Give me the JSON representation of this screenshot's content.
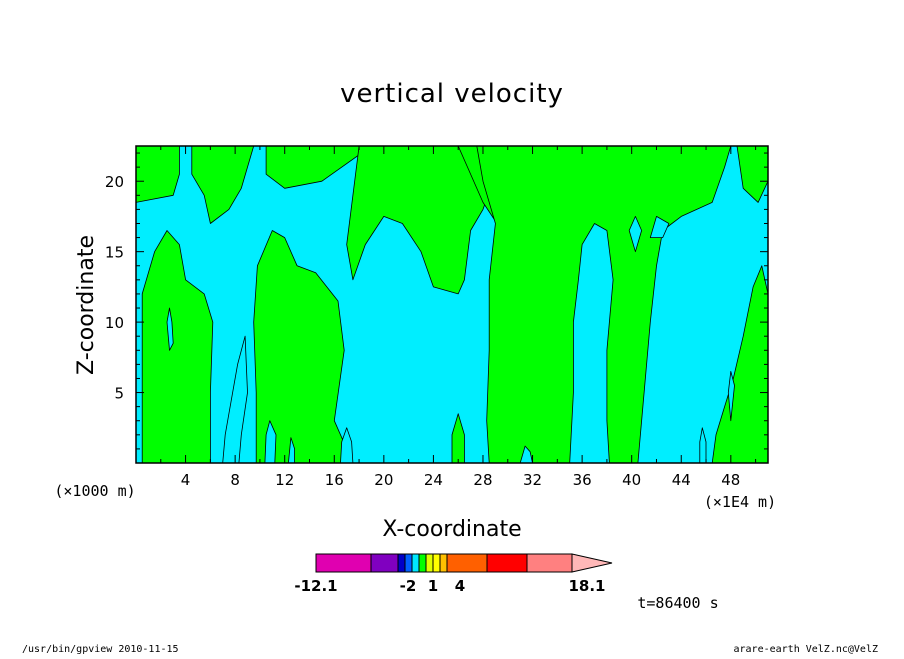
{
  "chart_data": {
    "type": "heatmap",
    "title": "vertical velocity",
    "xlabel": "X-coordinate",
    "ylabel": "Z-coordinate",
    "x_unit_label": "(×1E4 m)",
    "y_unit_label": "(×1000 m)",
    "x_ticks": [
      "4",
      "8",
      "12",
      "16",
      "20",
      "24",
      "28",
      "32",
      "36",
      "40",
      "44",
      "48"
    ],
    "y_ticks": [
      "5",
      "10",
      "15",
      "20"
    ],
    "xlim": [
      0,
      51
    ],
    "ylim": [
      0,
      22.5
    ],
    "colorbar": {
      "colors": [
        "#e000b0",
        "#8000c0",
        "#0000c8",
        "#0060ff",
        "#00e8ff",
        "#00ff00",
        "#e0ff00",
        "#ffff00",
        "#ffc000",
        "#ff6000",
        "#ff0000",
        "#ff8080",
        "#ffb8b8"
      ],
      "labels": [
        "-12.1",
        "-2",
        "1",
        "4",
        "18.1"
      ]
    },
    "field_colors": {
      "positive": "#00ff00",
      "negative": "#00eeff"
    },
    "regions": [
      {
        "sign": "positive",
        "polygon": [
          [
            0,
            22.5
          ],
          [
            3.5,
            22.5
          ],
          [
            3.5,
            20.5
          ],
          [
            3,
            19
          ],
          [
            0,
            18.5
          ]
        ]
      },
      {
        "sign": "positive",
        "polygon": [
          [
            4.5,
            22.5
          ],
          [
            9.5,
            22.5
          ],
          [
            8.5,
            19.5
          ],
          [
            7.5,
            18
          ],
          [
            6,
            17
          ],
          [
            5.5,
            19
          ],
          [
            4.5,
            20.5
          ]
        ]
      },
      {
        "sign": "positive",
        "polygon": [
          [
            10.5,
            22.5
          ],
          [
            19,
            22.5
          ],
          [
            15,
            20
          ],
          [
            12,
            19.5
          ],
          [
            10.5,
            20.5
          ]
        ]
      },
      {
        "sign": "positive",
        "polygon": [
          [
            0.5,
            0
          ],
          [
            6,
            0
          ],
          [
            6,
            5
          ],
          [
            6.2,
            10
          ],
          [
            5.5,
            12
          ],
          [
            4,
            13
          ],
          [
            3.5,
            15.5
          ],
          [
            2.5,
            16.5
          ],
          [
            1.5,
            15
          ],
          [
            0.5,
            12
          ],
          [
            0.5,
            6
          ]
        ]
      },
      {
        "sign": "positive",
        "polygon": [
          [
            9.7,
            0
          ],
          [
            17.5,
            0
          ],
          [
            16,
            3
          ],
          [
            16.8,
            8
          ],
          [
            16.3,
            11.5
          ],
          [
            14.5,
            13.5
          ],
          [
            13,
            14
          ],
          [
            12,
            16
          ],
          [
            11,
            16.5
          ],
          [
            9.8,
            14
          ],
          [
            9.5,
            10
          ],
          [
            9.7,
            5
          ]
        ]
      },
      {
        "sign": "positive",
        "polygon": [
          [
            18,
            22.5
          ],
          [
            26.5,
            22.5
          ],
          [
            29,
            20.5
          ],
          [
            28,
            18
          ],
          [
            27,
            16.5
          ],
          [
            26.5,
            13
          ],
          [
            26,
            12
          ],
          [
            24,
            12.5
          ],
          [
            23,
            15
          ],
          [
            21.5,
            17
          ],
          [
            20,
            17.5
          ],
          [
            18.5,
            15.5
          ],
          [
            17.5,
            13
          ],
          [
            17,
            15.5
          ],
          [
            17.5,
            19
          ]
        ]
      },
      {
        "sign": "positive",
        "polygon": [
          [
            26,
            22.5
          ],
          [
            28,
            18.5
          ],
          [
            29.5,
            16.5
          ],
          [
            31,
            15.5
          ],
          [
            33.5,
            16
          ],
          [
            35.5,
            17
          ],
          [
            37,
            19.5
          ],
          [
            38,
            22.5
          ]
        ]
      },
      {
        "sign": "positive",
        "polygon": [
          [
            28.5,
            0
          ],
          [
            35,
            0
          ],
          [
            35.3,
            5
          ],
          [
            35.3,
            10
          ],
          [
            35.7,
            13
          ],
          [
            36,
            15.5
          ],
          [
            37,
            17
          ],
          [
            38,
            16.5
          ],
          [
            38.5,
            13
          ],
          [
            38,
            8
          ],
          [
            38,
            3
          ],
          [
            38.2,
            0
          ],
          [
            40.5,
            0
          ],
          [
            41,
            5
          ],
          [
            41.5,
            10
          ],
          [
            42,
            14
          ],
          [
            42.5,
            16.5
          ],
          [
            44,
            17.5
          ],
          [
            46.5,
            18.5
          ],
          [
            47.5,
            21
          ],
          [
            48,
            22.5
          ],
          [
            27.5,
            22.5
          ],
          [
            28,
            20
          ],
          [
            29,
            17
          ],
          [
            28.5,
            13
          ],
          [
            28.5,
            8
          ],
          [
            28.3,
            3
          ]
        ]
      },
      {
        "sign": "positive",
        "polygon": [
          [
            46.5,
            0
          ],
          [
            51,
            0
          ],
          [
            51,
            12
          ],
          [
            50.5,
            14
          ],
          [
            49.8,
            12.5
          ],
          [
            49,
            9
          ],
          [
            48.2,
            6
          ],
          [
            47.5,
            4
          ],
          [
            46.8,
            2
          ]
        ]
      },
      {
        "sign": "positive",
        "polygon": [
          [
            48.5,
            22.5
          ],
          [
            51,
            22.5
          ],
          [
            51,
            20
          ],
          [
            50.2,
            18.5
          ],
          [
            49,
            19.5
          ]
        ]
      },
      {
        "sign": "positive",
        "polygon": [
          [
            25.5,
            0
          ],
          [
            26.5,
            0
          ],
          [
            26.5,
            2
          ],
          [
            26,
            3.5
          ],
          [
            25.5,
            2
          ]
        ]
      },
      {
        "sign": "negative",
        "polygon": [
          [
            2.5,
            10
          ],
          [
            2.7,
            8
          ],
          [
            3,
            8.5
          ],
          [
            2.9,
            10
          ],
          [
            2.7,
            11
          ]
        ]
      },
      {
        "sign": "negative",
        "polygon": [
          [
            7,
            0
          ],
          [
            8.3,
            0
          ],
          [
            8.5,
            2
          ],
          [
            9,
            5
          ],
          [
            8.8,
            9
          ],
          [
            8.2,
            7
          ],
          [
            7.5,
            3.5
          ],
          [
            7.2,
            2
          ]
        ]
      },
      {
        "sign": "negative",
        "polygon": [
          [
            10.4,
            0
          ],
          [
            11.2,
            0
          ],
          [
            11.3,
            2
          ],
          [
            10.8,
            3
          ],
          [
            10.5,
            2
          ]
        ]
      },
      {
        "sign": "negative",
        "polygon": [
          [
            12.3,
            0
          ],
          [
            12.8,
            0
          ],
          [
            12.8,
            1
          ],
          [
            12.5,
            1.8
          ]
        ]
      },
      {
        "sign": "negative",
        "polygon": [
          [
            16.5,
            0
          ],
          [
            17.5,
            0
          ],
          [
            17.4,
            1.5
          ],
          [
            17,
            2.5
          ],
          [
            16.6,
            1.5
          ]
        ]
      },
      {
        "sign": "negative",
        "polygon": [
          [
            31,
            0
          ],
          [
            32,
            0
          ],
          [
            31.8,
            0.8
          ],
          [
            31.4,
            1.2
          ]
        ]
      },
      {
        "sign": "negative",
        "polygon": [
          [
            39.8,
            16.5
          ],
          [
            40.3,
            15
          ],
          [
            40.8,
            16.5
          ],
          [
            40.3,
            17.5
          ]
        ]
      },
      {
        "sign": "negative",
        "polygon": [
          [
            41.5,
            16
          ],
          [
            42.5,
            16
          ],
          [
            43,
            17
          ],
          [
            42,
            17.5
          ]
        ]
      },
      {
        "sign": "negative",
        "polygon": [
          [
            45.5,
            0
          ],
          [
            46,
            0
          ],
          [
            46,
            1.5
          ],
          [
            45.7,
            2.5
          ],
          [
            45.5,
            1.5
          ]
        ]
      },
      {
        "sign": "negative",
        "polygon": [
          [
            48,
            3
          ],
          [
            48.3,
            5.5
          ],
          [
            48,
            6.5
          ],
          [
            47.8,
            5
          ]
        ]
      }
    ]
  },
  "time_label": "t=86400 s",
  "footer": {
    "left": "/usr/bin/gpview   2010-11-15",
    "right": "arare-earth_VelZ.nc@VelZ"
  }
}
